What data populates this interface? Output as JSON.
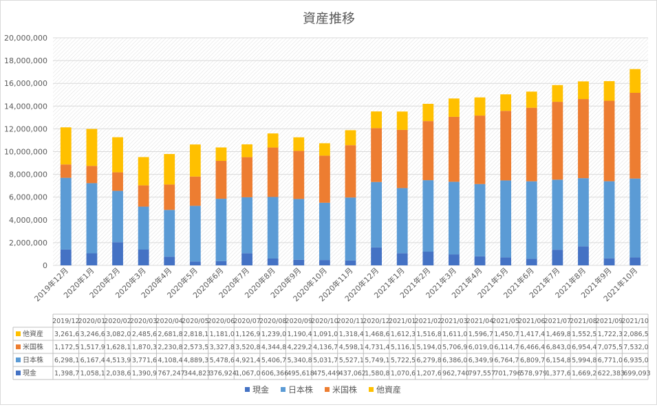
{
  "chart_data": {
    "type": "bar",
    "stacked": true,
    "title": "資産推移",
    "xlabel": "",
    "ylabel": "",
    "ylim": [
      0,
      20000000
    ],
    "yticks": [
      "0",
      "2,000,000",
      "4,000,000",
      "6,000,000",
      "8,000,000",
      "10,000,000",
      "12,000,000",
      "14,000,000",
      "16,000,000",
      "18,000,000",
      "20,000,000"
    ],
    "grid": true,
    "legend_position": "bottom",
    "categories": [
      "2019年12月",
      "2020年1月",
      "2020年2月",
      "2020年3月",
      "2020年4月",
      "2020年5月",
      "2020年6月",
      "2020年7月",
      "2020年8月",
      "2020年9月",
      "2020年10月",
      "2020年11月",
      "2020年12月",
      "2021年1月",
      "2021年2月",
      "2021年3月",
      "2021年4月",
      "2021年5月",
      "2021年6月",
      "2021年7月",
      "2021年8月",
      "2021年9月",
      "2021年10月"
    ],
    "table_headers": [
      "2019/12",
      "2020/01",
      "2020/02",
      "2020/03",
      "2020/04",
      "2020/05",
      "2020/06",
      "2020/07",
      "2020/08",
      "2020/09",
      "2020/10",
      "2020/11",
      "2020/12",
      "2021/01",
      "2021/02",
      "2021/03",
      "2021/04",
      "2021/05",
      "2021/06",
      "2021/07",
      "2021/08",
      "2021/09",
      "2021/10"
    ],
    "series": [
      {
        "name": "現金",
        "color": "#4472C4",
        "values": [
          1398700,
          1058100,
          2038600,
          1390900,
          767247,
          344823,
          376924,
          1067000,
          606366,
          495618,
          475449,
          437062,
          1580800,
          1070600,
          1207600,
          962740,
          797557,
          701796,
          578979,
          1377600,
          1669200,
          622383,
          699093
        ],
        "table_values": [
          "1,398,7",
          "1,058,1",
          "2,038,6",
          "1,390,9",
          "767,247",
          "344,823",
          "376,924",
          "1,067,0",
          "606,366",
          "495,618",
          "475,449",
          "437,062",
          "1,580,8",
          "1,070,6",
          "1,207,6",
          "962,740",
          "797,557",
          "701,796",
          "578,979",
          "1,377,6",
          "1,669,2",
          "622,383",
          "699,093"
        ]
      },
      {
        "name": "日本株",
        "color": "#5B9BD5",
        "values": [
          6298100,
          6167400,
          4513900,
          3771600,
          4108400,
          4889300,
          5478600,
          4921400,
          5406700,
          5340800,
          5031700,
          5527100,
          5749100,
          5722500,
          6279800,
          6386000,
          6349900,
          6764700,
          6809700,
          6154800,
          5994800,
          6771000,
          6935000
        ],
        "table_values": [
          "6,298,1",
          "6,167,4",
          "4,513,9",
          "3,771,6",
          "4,108,4",
          "4,889,3",
          "5,478,6",
          "4,921,4",
          "5,406,7",
          "5,340,8",
          "5,031,7",
          "5,527,1",
          "5,749,1",
          "5,722,5",
          "6,279,8",
          "6,386,0",
          "6,349,9",
          "6,764,7",
          "6,809,7",
          "6,154,8",
          "5,994,8",
          "6,771,0",
          "6,935,0"
        ]
      },
      {
        "name": "米国株",
        "color": "#ED7D31",
        "values": [
          1172500,
          1517900,
          1628100,
          1870300,
          2230800,
          2573500,
          3327800,
          3520800,
          4344800,
          4229200,
          4136700,
          4598100,
          4731400,
          5116100,
          5194000,
          5706900,
          6019000,
          6114700,
          6466400,
          6843000,
          6954400,
          7075500,
          7532000
        ],
        "table_values": [
          "1,172,5",
          "1,517,9",
          "1,628,1",
          "1,870,3",
          "2,230,8",
          "2,573,5",
          "3,327,8",
          "3,520,8",
          "4,344,8",
          "4,229,2",
          "4,136,7",
          "4,598,1",
          "4,731,4",
          "5,116,1",
          "5,194,0",
          "5,706,9",
          "6,019,0",
          "6,114,7",
          "6,466,4",
          "6,843,0",
          "6,954,4",
          "7,075,5",
          "7,532,0"
        ]
      },
      {
        "name": "他資産",
        "color": "#FFC000",
        "values": [
          3261600,
          3246600,
          3082000,
          2485600,
          2681800,
          2818100,
          1181000,
          1126900,
          1239000,
          1190400,
          1091000,
          1318400,
          1468600,
          1612300,
          1516800,
          1611000,
          1596700,
          1450700,
          1417400,
          1469800,
          1552500,
          1722300,
          2086500
        ],
        "table_values": [
          "3,261,6",
          "3,246,6",
          "3,082,0",
          "2,485,6",
          "2,681,8",
          "2,818,1",
          "1,181,0",
          "1,126,9",
          "1,239,0",
          "1,190,4",
          "1,091,0",
          "1,318,4",
          "1,468,6",
          "1,612,3",
          "1,516,8",
          "1,611,0",
          "1,596,7",
          "1,450,7",
          "1,417,4",
          "1,469,8",
          "1,552,5",
          "1,722,3",
          "2,086,5"
        ]
      }
    ]
  }
}
